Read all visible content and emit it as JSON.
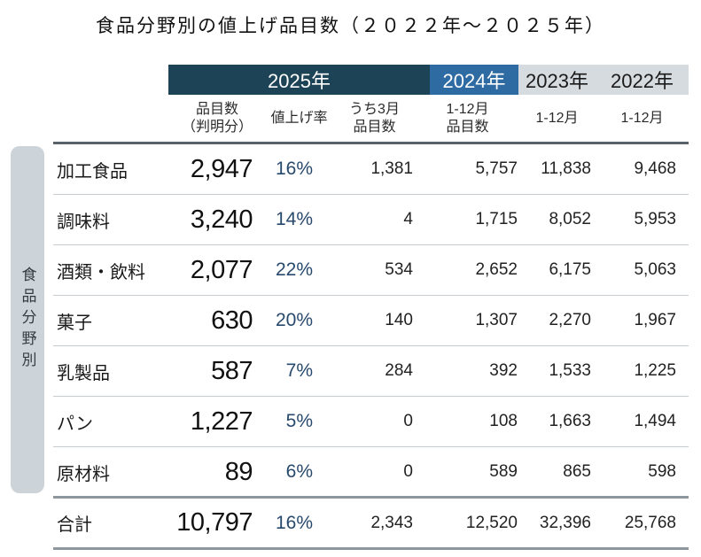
{
  "title": "食品分野別の値上げ品目数（２０２２年～２０２５年）",
  "sidebar_label": "食品分野別",
  "colors": {
    "header_2025_bg": "#1d4356",
    "header_2024_bg": "#2f6ba3",
    "header_past_bg": "#d6dbdf",
    "rate_text": "#27496d",
    "sidebar_bg": "#cdd4d9"
  },
  "header": {
    "years": {
      "y2025": "2025年",
      "y2024": "2024年",
      "y2023": "2023年",
      "y2022": "2022年"
    },
    "subheaders": [
      {
        "line1": "品目数",
        "line2": "（判明分）"
      },
      {
        "line1": "値上げ率",
        "line2": ""
      },
      {
        "line1": "うち3月",
        "line2": "品目数"
      },
      {
        "line1": "1-12月",
        "line2": "品目数"
      },
      {
        "line1": "1-12月",
        "line2": ""
      },
      {
        "line1": "1-12月",
        "line2": ""
      }
    ]
  },
  "rows": [
    {
      "label": "加工食品",
      "items": "2,947",
      "rate": "16%",
      "march": "1,381",
      "y2024": "5,757",
      "y2023": "11,838",
      "y2022": "9,468"
    },
    {
      "label": "調味料",
      "items": "3,240",
      "rate": "14%",
      "march": "4",
      "y2024": "1,715",
      "y2023": "8,052",
      "y2022": "5,953"
    },
    {
      "label": "酒類・飲料",
      "items": "2,077",
      "rate": "22%",
      "march": "534",
      "y2024": "2,652",
      "y2023": "6,175",
      "y2022": "5,063"
    },
    {
      "label": "菓子",
      "items": "630",
      "rate": "20%",
      "march": "140",
      "y2024": "1,307",
      "y2023": "2,270",
      "y2022": "1,967"
    },
    {
      "label": "乳製品",
      "items": "587",
      "rate": "7%",
      "march": "284",
      "y2024": "392",
      "y2023": "1,533",
      "y2022": "1,225"
    },
    {
      "label": "パン",
      "items": "1,227",
      "rate": "5%",
      "march": "0",
      "y2024": "108",
      "y2023": "1,663",
      "y2022": "1,494"
    },
    {
      "label": "原材料",
      "items": "89",
      "rate": "6%",
      "march": "0",
      "y2024": "589",
      "y2023": "865",
      "y2022": "598"
    }
  ],
  "total": {
    "label": "合計",
    "items": "10,797",
    "rate": "16%",
    "march": "2,343",
    "y2024": "12,520",
    "y2023": "32,396",
    "y2022": "25,768"
  },
  "chart_data": {
    "type": "table",
    "title": "食品分野別の値上げ品目数（2022年～2025年）",
    "row_axis_label": "食品分野別",
    "column_groups": [
      "2025年",
      "2025年",
      "2025年",
      "2024年",
      "2023年",
      "2022年"
    ],
    "columns": [
      "品目数（判明分）",
      "値上げ率",
      "うち3月品目数",
      "1-12月品目数",
      "1-12月",
      "1-12月"
    ],
    "rows": [
      {
        "category": "加工食品",
        "values": [
          2947,
          "16%",
          1381,
          5757,
          11838,
          9468
        ]
      },
      {
        "category": "調味料",
        "values": [
          3240,
          "14%",
          4,
          1715,
          8052,
          5953
        ]
      },
      {
        "category": "酒類・飲料",
        "values": [
          2077,
          "22%",
          534,
          2652,
          6175,
          5063
        ]
      },
      {
        "category": "菓子",
        "values": [
          630,
          "20%",
          140,
          1307,
          2270,
          1967
        ]
      },
      {
        "category": "乳製品",
        "values": [
          587,
          "7%",
          284,
          392,
          1533,
          1225
        ]
      },
      {
        "category": "パン",
        "values": [
          1227,
          "5%",
          0,
          108,
          1663,
          1494
        ]
      },
      {
        "category": "原材料",
        "values": [
          89,
          "6%",
          0,
          589,
          865,
          598
        ]
      },
      {
        "category": "合計",
        "values": [
          10797,
          "16%",
          2343,
          12520,
          32396,
          25768
        ]
      }
    ]
  }
}
